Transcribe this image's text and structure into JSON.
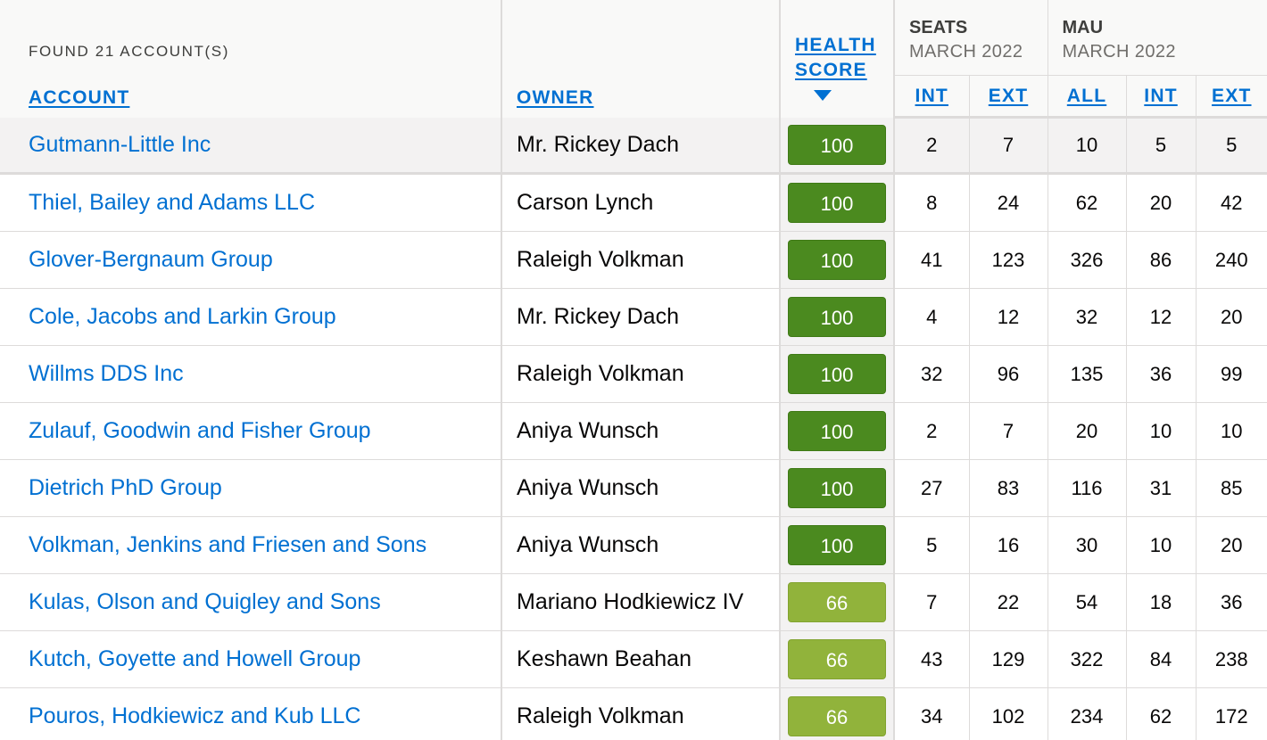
{
  "header": {
    "found_label": "FOUND 21 ACCOUNT(S)",
    "account_label": "ACCOUNT",
    "owner_label": "OWNER",
    "health_label_line1": "HEALTH",
    "health_label_line2": "SCORE",
    "sort_direction": "descending",
    "seats": {
      "title": "SEATS",
      "period": "MARCH 2022",
      "int_label": "INT",
      "ext_label": "EXT"
    },
    "mau": {
      "title": "MAU",
      "period": "MARCH 2022",
      "all_label": "ALL",
      "int_label": "INT",
      "ext_label": "EXT"
    }
  },
  "colors": {
    "link": "#0070d2",
    "score_high": "#4b8a1f",
    "score_mid": "#91b33b",
    "highlight_row": "#f3f2f2"
  },
  "rows": [
    {
      "account": "Gutmann-Little Inc",
      "owner": "Mr. Rickey Dach",
      "health": "100",
      "level": "high",
      "seats_int": "2",
      "seats_ext": "7",
      "mau_all": "10",
      "mau_int": "5",
      "mau_ext": "5"
    },
    {
      "account": "Thiel, Bailey and Adams LLC",
      "owner": "Carson Lynch",
      "health": "100",
      "level": "high",
      "seats_int": "8",
      "seats_ext": "24",
      "mau_all": "62",
      "mau_int": "20",
      "mau_ext": "42"
    },
    {
      "account": "Glover-Bergnaum Group",
      "owner": "Raleigh Volkman",
      "health": "100",
      "level": "high",
      "seats_int": "41",
      "seats_ext": "123",
      "mau_all": "326",
      "mau_int": "86",
      "mau_ext": "240"
    },
    {
      "account": "Cole, Jacobs and Larkin Group",
      "owner": "Mr. Rickey Dach",
      "health": "100",
      "level": "high",
      "seats_int": "4",
      "seats_ext": "12",
      "mau_all": "32",
      "mau_int": "12",
      "mau_ext": "20"
    },
    {
      "account": "Willms DDS Inc",
      "owner": "Raleigh Volkman",
      "health": "100",
      "level": "high",
      "seats_int": "32",
      "seats_ext": "96",
      "mau_all": "135",
      "mau_int": "36",
      "mau_ext": "99"
    },
    {
      "account": "Zulauf, Goodwin and Fisher Group",
      "owner": "Aniya Wunsch",
      "health": "100",
      "level": "high",
      "seats_int": "2",
      "seats_ext": "7",
      "mau_all": "20",
      "mau_int": "10",
      "mau_ext": "10"
    },
    {
      "account": "Dietrich PhD Group",
      "owner": "Aniya Wunsch",
      "health": "100",
      "level": "high",
      "seats_int": "27",
      "seats_ext": "83",
      "mau_all": "116",
      "mau_int": "31",
      "mau_ext": "85"
    },
    {
      "account": "Volkman, Jenkins and Friesen and Sons",
      "owner": "Aniya Wunsch",
      "health": "100",
      "level": "high",
      "seats_int": "5",
      "seats_ext": "16",
      "mau_all": "30",
      "mau_int": "10",
      "mau_ext": "20"
    },
    {
      "account": "Kulas, Olson and Quigley and Sons",
      "owner": "Mariano Hodkiewicz IV",
      "health": "66",
      "level": "mid",
      "seats_int": "7",
      "seats_ext": "22",
      "mau_all": "54",
      "mau_int": "18",
      "mau_ext": "36"
    },
    {
      "account": "Kutch, Goyette and Howell Group",
      "owner": "Keshawn Beahan",
      "health": "66",
      "level": "mid",
      "seats_int": "43",
      "seats_ext": "129",
      "mau_all": "322",
      "mau_int": "84",
      "mau_ext": "238"
    },
    {
      "account": "Pouros, Hodkiewicz and Kub LLC",
      "owner": "Raleigh Volkman",
      "health": "66",
      "level": "mid",
      "seats_int": "34",
      "seats_ext": "102",
      "mau_all": "234",
      "mau_int": "62",
      "mau_ext": "172"
    }
  ]
}
